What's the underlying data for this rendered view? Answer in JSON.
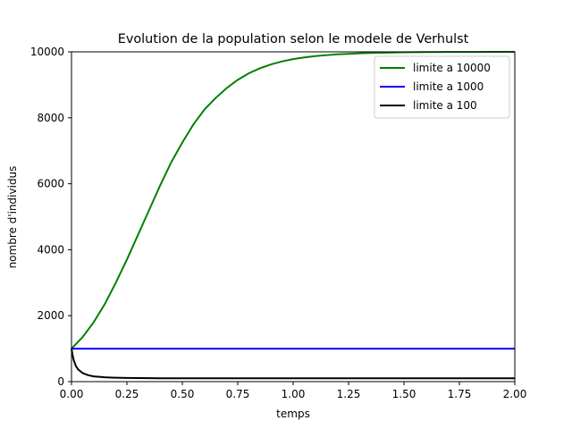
{
  "chart_data": {
    "type": "line",
    "title": "Evolution de la population selon le modele de Verhulst",
    "xlabel": "temps",
    "ylabel": "nombre d'individus",
    "xlim": [
      0,
      2
    ],
    "ylim": [
      0,
      10000
    ],
    "xticks": [
      "0.00",
      "0.25",
      "0.50",
      "0.75",
      "1.00",
      "1.25",
      "1.50",
      "1.75",
      "2.00"
    ],
    "yticks": [
      "0",
      "2000",
      "4000",
      "6000",
      "8000",
      "10000"
    ],
    "legend_position": "top-right",
    "grid": false,
    "series": [
      {
        "name": "limite a 10000",
        "color": "#008000",
        "x": [
          0,
          0.05,
          0.1,
          0.15,
          0.2,
          0.25,
          0.3,
          0.35,
          0.4,
          0.45,
          0.5,
          0.55,
          0.6,
          0.65,
          0.7,
          0.75,
          0.8,
          0.85,
          0.9,
          0.95,
          1.0,
          1.05,
          1.1,
          1.15,
          1.2,
          1.25,
          1.3,
          1.35,
          1.4,
          1.45,
          1.5,
          1.55,
          1.6,
          1.65,
          1.7,
          1.75,
          1.8,
          1.85,
          1.9,
          1.95,
          2.0
        ],
        "values": [
          1000,
          1350,
          1800,
          2350,
          3000,
          3700,
          4450,
          5200,
          5950,
          6650,
          7250,
          7800,
          8250,
          8600,
          8900,
          9150,
          9350,
          9500,
          9620,
          9710,
          9780,
          9830,
          9870,
          9900,
          9925,
          9940,
          9955,
          9965,
          9973,
          9980,
          9985,
          9989,
          9992,
          9994,
          9996,
          9997,
          9998,
          9998,
          9999,
          9999,
          10000
        ]
      },
      {
        "name": "limite a 1000",
        "color": "#0000ff",
        "x": [
          0,
          2.0
        ],
        "values": [
          1000,
          1000
        ]
      },
      {
        "name": "limite a 100",
        "color": "#000000",
        "x": [
          0,
          0.005,
          0.01,
          0.02,
          0.03,
          0.05,
          0.075,
          0.1,
          0.15,
          0.2,
          0.25,
          0.3,
          0.4,
          0.5,
          0.6,
          0.8,
          1.0,
          1.25,
          1.5,
          1.75,
          2.0
        ],
        "values": [
          1000,
          800,
          650,
          470,
          370,
          260,
          195,
          160,
          132,
          118,
          111,
          107,
          103,
          101,
          100.5,
          100,
          100,
          100,
          100,
          100,
          100
        ]
      }
    ]
  }
}
